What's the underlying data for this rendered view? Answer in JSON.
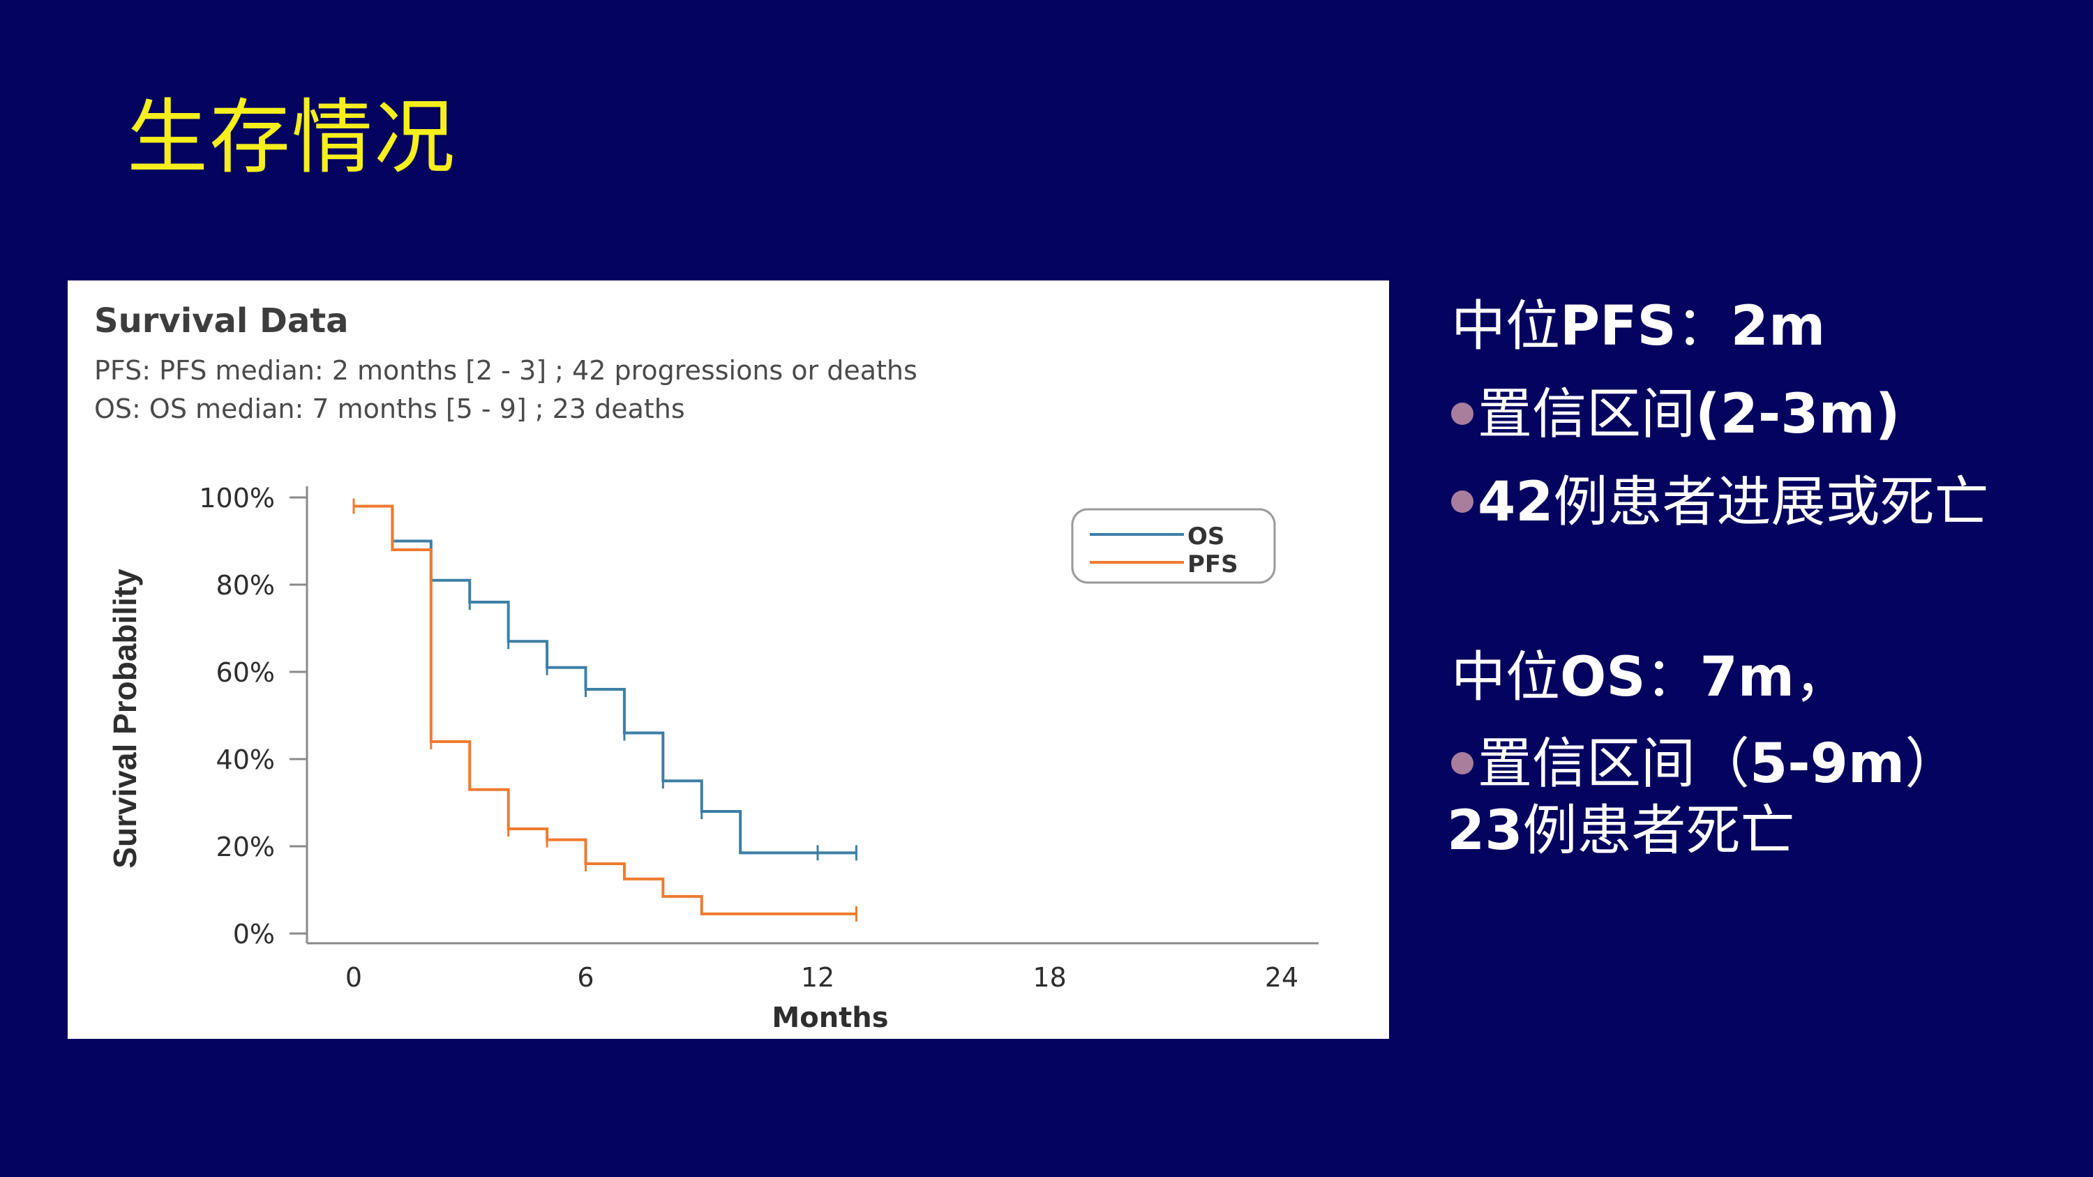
{
  "slide_title": "生存情况",
  "figure": {
    "heading": "Survival Data",
    "pfs_line": "PFS: PFS median: 2 months [2 - 3] ; 42 progressions or deaths",
    "os_line": "OS: OS median: 7 months [5 - 9] ; 23 deaths"
  },
  "panel": {
    "pfs_heading": {
      "pre": "中位",
      "bold": "PFS",
      "post": "：",
      "value": "2m"
    },
    "pfs_ci": {
      "pre": "置信区间",
      "bold": "(2-3m)"
    },
    "pfs_events": {
      "bold": "42",
      "post": "例患者进展或死亡"
    },
    "os_heading": {
      "pre": "中位",
      "bold": "OS",
      "post": "：",
      "value": "7m",
      "tail": "，"
    },
    "os_ci": {
      "pre": "置信区间（",
      "bold": "5-9m",
      "post": "）"
    },
    "os_events": {
      "bold": "23",
      "post": "例患者死亡"
    },
    "bullet_color": "#a97e9c"
  },
  "colors": {
    "background": "#04035f",
    "title": "#f6ef1c",
    "os": "#3c7fa6",
    "pfs": "#f07a2f"
  },
  "chart_data": {
    "type": "line",
    "step": true,
    "xlabel": "Months",
    "ylabel": "Survival Probability",
    "xlim": [
      0,
      24
    ],
    "ylim": [
      0,
      100
    ],
    "x_ticks": [
      "0",
      "6",
      "12",
      "18",
      "24"
    ],
    "y_ticks": [
      "0%",
      "20%",
      "40%",
      "60%",
      "80%",
      "100%"
    ],
    "legend": {
      "position": "top-right",
      "entries": [
        "OS",
        "PFS"
      ]
    },
    "series": [
      {
        "name": "OS",
        "color": "#3c7fa6",
        "x": [
          0,
          1,
          2,
          3,
          4,
          5,
          6,
          7,
          8,
          9,
          10,
          13
        ],
        "y": [
          98,
          90,
          81,
          76,
          67,
          61,
          56,
          46,
          35,
          28,
          18.5,
          18.5
        ],
        "censor_x": [
          0,
          1,
          2,
          3,
          4,
          5,
          6,
          7,
          8,
          9,
          12,
          13
        ]
      },
      {
        "name": "PFS",
        "color": "#f07a2f",
        "x": [
          0,
          1,
          2,
          3,
          4,
          5,
          6,
          7,
          8,
          9,
          13
        ],
        "y": [
          98,
          88,
          44,
          33,
          24,
          21.5,
          16,
          12.5,
          8.5,
          4.5,
          4.5
        ],
        "censor_x": [
          0,
          2,
          4,
          5,
          6,
          13
        ]
      }
    ]
  }
}
